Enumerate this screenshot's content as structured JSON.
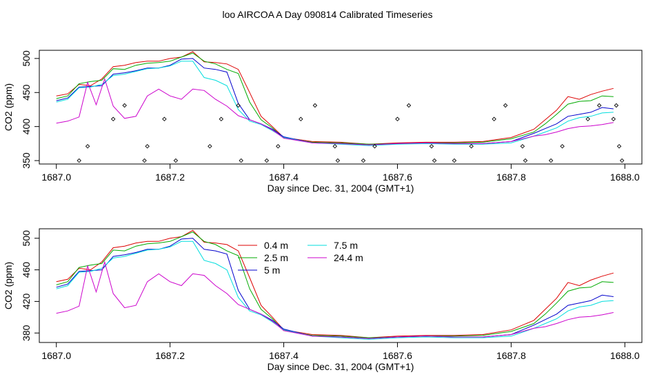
{
  "figure": {
    "title": "loo AIRCOA A  Day 090814  Calibrated Timeseries"
  },
  "chart_data": [
    {
      "type": "line",
      "xlabel": "Day since Dec. 31, 2004 (GMT+1)",
      "ylabel": "CO2 (ppm)",
      "xlim": [
        1686.97,
        1688.03
      ],
      "ylim": [
        345,
        512
      ],
      "xticks": [
        "1687.0",
        "1687.2",
        "1687.4",
        "1687.6",
        "1687.8",
        "1688.0"
      ],
      "yticks": [
        "350",
        "400",
        "450",
        "500"
      ],
      "legend": "none",
      "series": [
        {
          "name": "0.4 m",
          "color": "#dd0000",
          "x": [
            1687.0,
            1687.02,
            1687.04,
            1687.06,
            1687.08,
            1687.1,
            1687.12,
            1687.14,
            1687.16,
            1687.18,
            1687.2,
            1687.22,
            1687.24,
            1687.26,
            1687.28,
            1687.3,
            1687.32,
            1687.34,
            1687.36,
            1687.38,
            1687.4,
            1687.45,
            1687.5,
            1687.55,
            1687.6,
            1687.65,
            1687.7,
            1687.75,
            1687.8,
            1687.84,
            1687.86,
            1687.88,
            1687.9,
            1687.92,
            1687.94,
            1687.96,
            1687.98
          ],
          "y": [
            445,
            448,
            462,
            460,
            470,
            488,
            490,
            494,
            496,
            496,
            500,
            502,
            510,
            495,
            494,
            492,
            484,
            450,
            415,
            400,
            384,
            378,
            377,
            374,
            376,
            377,
            377,
            378,
            384,
            396,
            410,
            424,
            444,
            440,
            447,
            452,
            456
          ]
        },
        {
          "name": "2.5 m",
          "color": "#00aa00",
          "x": [
            1687.0,
            1687.02,
            1687.04,
            1687.06,
            1687.08,
            1687.1,
            1687.12,
            1687.14,
            1687.16,
            1687.18,
            1687.2,
            1687.22,
            1687.24,
            1687.26,
            1687.28,
            1687.3,
            1687.32,
            1687.34,
            1687.36,
            1687.38,
            1687.4,
            1687.45,
            1687.5,
            1687.55,
            1687.6,
            1687.65,
            1687.7,
            1687.75,
            1687.8,
            1687.84,
            1687.86,
            1687.88,
            1687.9,
            1687.92,
            1687.94,
            1687.96,
            1687.98
          ],
          "y": [
            441,
            445,
            463,
            466,
            468,
            485,
            484,
            490,
            493,
            494,
            496,
            502,
            508,
            496,
            492,
            484,
            478,
            436,
            410,
            398,
            383,
            377,
            376,
            374,
            375,
            376,
            376,
            377,
            382,
            392,
            404,
            418,
            433,
            437,
            438,
            445,
            444
          ]
        },
        {
          "name": "5 m",
          "color": "#0000cc",
          "x": [
            1687.0,
            1687.02,
            1687.04,
            1687.06,
            1687.08,
            1687.1,
            1687.12,
            1687.14,
            1687.16,
            1687.18,
            1687.2,
            1687.22,
            1687.24,
            1687.26,
            1687.28,
            1687.3,
            1687.32,
            1687.34,
            1687.36,
            1687.38,
            1687.4,
            1687.45,
            1687.5,
            1687.55,
            1687.6,
            1687.65,
            1687.7,
            1687.75,
            1687.8,
            1687.84,
            1687.86,
            1687.88,
            1687.9,
            1687.92,
            1687.94,
            1687.96,
            1687.98
          ],
          "y": [
            438,
            442,
            458,
            459,
            460,
            477,
            479,
            482,
            486,
            486,
            490,
            499,
            500,
            486,
            484,
            480,
            434,
            410,
            404,
            396,
            385,
            376,
            375,
            373,
            375,
            376,
            375,
            375,
            378,
            390,
            397,
            404,
            415,
            418,
            421,
            428,
            426
          ]
        },
        {
          "name": "7.5 m",
          "color": "#00dddd",
          "x": [
            1687.0,
            1687.02,
            1687.04,
            1687.06,
            1687.08,
            1687.1,
            1687.12,
            1687.14,
            1687.16,
            1687.18,
            1687.2,
            1687.22,
            1687.24,
            1687.26,
            1687.28,
            1687.3,
            1687.32,
            1687.34,
            1687.36,
            1687.38,
            1687.4,
            1687.45,
            1687.5,
            1687.55,
            1687.6,
            1687.65,
            1687.7,
            1687.75,
            1687.8,
            1687.84,
            1687.86,
            1687.88,
            1687.9,
            1687.92,
            1687.94,
            1687.96,
            1687.98
          ],
          "y": [
            436,
            440,
            457,
            458,
            462,
            475,
            477,
            481,
            485,
            486,
            489,
            496,
            496,
            472,
            468,
            460,
            425,
            408,
            403,
            394,
            384,
            376,
            374,
            372,
            374,
            375,
            374,
            374,
            376,
            386,
            392,
            398,
            408,
            413,
            415,
            420,
            421
          ]
        },
        {
          "name": "24.4 m",
          "color": "#cc00cc",
          "x": [
            1687.0,
            1687.02,
            1687.04,
            1687.055,
            1687.07,
            1687.085,
            1687.1,
            1687.12,
            1687.14,
            1687.16,
            1687.18,
            1687.2,
            1687.22,
            1687.24,
            1687.26,
            1687.28,
            1687.3,
            1687.32,
            1687.34,
            1687.36,
            1687.38,
            1687.4,
            1687.45,
            1687.5,
            1687.55,
            1687.6,
            1687.65,
            1687.7,
            1687.75,
            1687.8,
            1687.84,
            1687.86,
            1687.88,
            1687.9,
            1687.92,
            1687.94,
            1687.96,
            1687.98
          ],
          "y": [
            405,
            408,
            414,
            465,
            432,
            470,
            430,
            412,
            415,
            445,
            455,
            445,
            440,
            455,
            453,
            440,
            430,
            416,
            410,
            404,
            395,
            383,
            376,
            375,
            373,
            375,
            376,
            375,
            375,
            378,
            386,
            388,
            392,
            397,
            400,
            401,
            403,
            406
          ]
        }
      ],
      "points": {
        "x": [
          1687.04,
          1687.055,
          1687.1,
          1687.12,
          1687.155,
          1687.16,
          1687.19,
          1687.21,
          1687.27,
          1687.29,
          1687.32,
          1687.325,
          1687.37,
          1687.39,
          1687.43,
          1687.455,
          1687.49,
          1687.495,
          1687.54,
          1687.56,
          1687.6,
          1687.62,
          1687.66,
          1687.665,
          1687.7,
          1687.73,
          1687.77,
          1687.79,
          1687.82,
          1687.825,
          1687.87,
          1687.89,
          1687.935,
          1687.955,
          1687.98,
          1687.985,
          1687.99,
          1687.995
        ],
        "y": [
          350,
          371,
          411,
          431,
          350,
          371,
          411,
          350,
          371,
          411,
          431,
          350,
          350,
          371,
          411,
          431,
          371,
          350,
          350,
          371,
          411,
          431,
          371,
          350,
          350,
          371,
          411,
          431,
          371,
          350,
          350,
          371,
          411,
          431,
          411,
          431,
          371,
          350
        ]
      }
    },
    {
      "type": "line",
      "xlabel": "Day since Dec. 31, 2004 (GMT+1)",
      "ylabel": "CO2 (ppm)",
      "xlim": [
        1686.97,
        1688.03
      ],
      "ylim": [
        368,
        512
      ],
      "xticks": [
        "1687.0",
        "1687.2",
        "1687.4",
        "1687.6",
        "1687.8",
        "1688.0"
      ],
      "yticks": [
        "380",
        "420",
        "460",
        "500"
      ],
      "legend": "top-center",
      "legend_entries": [
        {
          "label": "0.4 m",
          "color": "#dd0000"
        },
        {
          "label": "2.5 m",
          "color": "#00aa00"
        },
        {
          "label": "5 m",
          "color": "#0000cc"
        },
        {
          "label": "7.5 m",
          "color": "#00dddd"
        },
        {
          "label": "24.4 m",
          "color": "#cc00cc"
        }
      ],
      "series": [
        {
          "name": "0.4 m",
          "color": "#dd0000",
          "x": [
            1687.0,
            1687.02,
            1687.04,
            1687.06,
            1687.08,
            1687.1,
            1687.12,
            1687.14,
            1687.16,
            1687.18,
            1687.2,
            1687.22,
            1687.24,
            1687.26,
            1687.28,
            1687.3,
            1687.32,
            1687.34,
            1687.36,
            1687.38,
            1687.4,
            1687.45,
            1687.5,
            1687.55,
            1687.6,
            1687.65,
            1687.7,
            1687.75,
            1687.8,
            1687.84,
            1687.86,
            1687.88,
            1687.9,
            1687.92,
            1687.94,
            1687.96,
            1687.98
          ],
          "y": [
            445,
            448,
            462,
            460,
            470,
            488,
            490,
            494,
            496,
            496,
            500,
            502,
            510,
            495,
            494,
            492,
            484,
            450,
            415,
            400,
            384,
            378,
            377,
            374,
            376,
            377,
            377,
            378,
            384,
            396,
            410,
            424,
            444,
            440,
            447,
            452,
            456
          ]
        },
        {
          "name": "2.5 m",
          "color": "#00aa00",
          "x": [
            1687.0,
            1687.02,
            1687.04,
            1687.06,
            1687.08,
            1687.1,
            1687.12,
            1687.14,
            1687.16,
            1687.18,
            1687.2,
            1687.22,
            1687.24,
            1687.26,
            1687.28,
            1687.3,
            1687.32,
            1687.34,
            1687.36,
            1687.38,
            1687.4,
            1687.45,
            1687.5,
            1687.55,
            1687.6,
            1687.65,
            1687.7,
            1687.75,
            1687.8,
            1687.84,
            1687.86,
            1687.88,
            1687.9,
            1687.92,
            1687.94,
            1687.96,
            1687.98
          ],
          "y": [
            441,
            445,
            463,
            466,
            468,
            485,
            484,
            490,
            493,
            494,
            496,
            502,
            508,
            496,
            492,
            484,
            478,
            436,
            410,
            398,
            383,
            377,
            376,
            374,
            375,
            376,
            376,
            377,
            382,
            392,
            404,
            418,
            433,
            437,
            438,
            445,
            444
          ]
        },
        {
          "name": "5 m",
          "color": "#0000cc",
          "x": [
            1687.0,
            1687.02,
            1687.04,
            1687.06,
            1687.08,
            1687.1,
            1687.12,
            1687.14,
            1687.16,
            1687.18,
            1687.2,
            1687.22,
            1687.24,
            1687.26,
            1687.28,
            1687.3,
            1687.32,
            1687.34,
            1687.36,
            1687.38,
            1687.4,
            1687.45,
            1687.5,
            1687.55,
            1687.6,
            1687.65,
            1687.7,
            1687.75,
            1687.8,
            1687.84,
            1687.86,
            1687.88,
            1687.9,
            1687.92,
            1687.94,
            1687.96,
            1687.98
          ],
          "y": [
            438,
            442,
            458,
            459,
            460,
            477,
            479,
            482,
            486,
            486,
            490,
            499,
            500,
            486,
            484,
            480,
            434,
            410,
            404,
            396,
            385,
            376,
            375,
            373,
            375,
            376,
            375,
            375,
            378,
            390,
            397,
            404,
            415,
            418,
            421,
            428,
            426
          ]
        },
        {
          "name": "7.5 m",
          "color": "#00dddd",
          "x": [
            1687.0,
            1687.02,
            1687.04,
            1687.06,
            1687.08,
            1687.1,
            1687.12,
            1687.14,
            1687.16,
            1687.18,
            1687.2,
            1687.22,
            1687.24,
            1687.26,
            1687.28,
            1687.3,
            1687.32,
            1687.34,
            1687.36,
            1687.38,
            1687.4,
            1687.45,
            1687.5,
            1687.55,
            1687.6,
            1687.65,
            1687.7,
            1687.75,
            1687.8,
            1687.84,
            1687.86,
            1687.88,
            1687.9,
            1687.92,
            1687.94,
            1687.96,
            1687.98
          ],
          "y": [
            436,
            440,
            457,
            458,
            462,
            475,
            477,
            481,
            485,
            486,
            489,
            496,
            496,
            472,
            468,
            460,
            425,
            408,
            403,
            394,
            384,
            376,
            374,
            372,
            374,
            375,
            374,
            374,
            376,
            386,
            392,
            398,
            408,
            413,
            415,
            420,
            421
          ]
        },
        {
          "name": "24.4 m",
          "color": "#cc00cc",
          "x": [
            1687.0,
            1687.02,
            1687.04,
            1687.055,
            1687.07,
            1687.085,
            1687.1,
            1687.12,
            1687.14,
            1687.16,
            1687.18,
            1687.2,
            1687.22,
            1687.24,
            1687.26,
            1687.28,
            1687.3,
            1687.32,
            1687.34,
            1687.36,
            1687.38,
            1687.4,
            1687.45,
            1687.5,
            1687.55,
            1687.6,
            1687.65,
            1687.7,
            1687.75,
            1687.8,
            1687.84,
            1687.86,
            1687.88,
            1687.9,
            1687.92,
            1687.94,
            1687.96,
            1687.98
          ],
          "y": [
            405,
            408,
            414,
            465,
            432,
            470,
            430,
            412,
            415,
            445,
            455,
            445,
            440,
            455,
            453,
            440,
            430,
            416,
            410,
            404,
            395,
            383,
            376,
            375,
            373,
            375,
            376,
            375,
            375,
            378,
            386,
            388,
            392,
            397,
            400,
            401,
            403,
            406
          ]
        }
      ]
    }
  ]
}
